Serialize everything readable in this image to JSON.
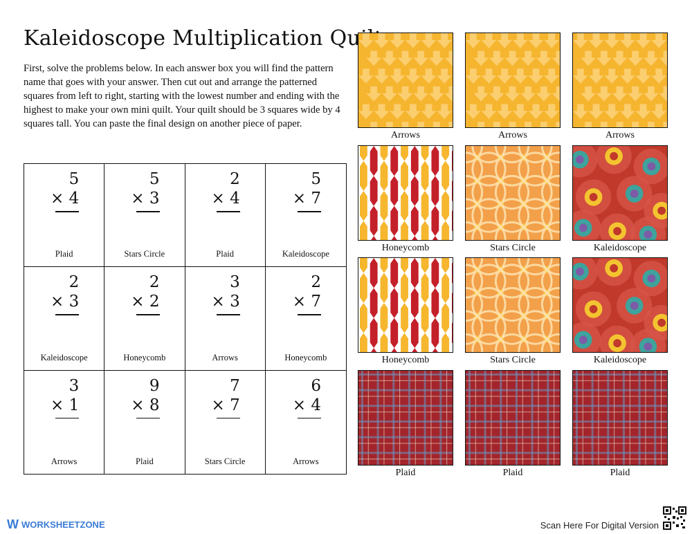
{
  "title": "Kaleidoscope Multiplication Quilt",
  "instructions": "First, solve the problems below. In each answer box you will find the pattern name that goes with your answer. Then cut out and arrange the patterned squares from left to right, starting with the lowest number and ending with the highest to make your own mini quilt. Your quilt should be 3 squares wide by 4 squares tall. You can paste the final design on another piece of  paper.",
  "problems": [
    {
      "top": "5",
      "bottom": "× 4",
      "label": "Plaid"
    },
    {
      "top": "5",
      "bottom": "× 3",
      "label": "Stars Circle"
    },
    {
      "top": "2",
      "bottom": "× 4",
      "label": "Plaid"
    },
    {
      "top": "5",
      "bottom": "× 7",
      "label": "Kaleidoscope"
    },
    {
      "top": "2",
      "bottom": "× 3",
      "label": "Kaleidoscope"
    },
    {
      "top": "2",
      "bottom": "× 2",
      "label": "Honeycomb"
    },
    {
      "top": "3",
      "bottom": "× 3",
      "label": "Arrows"
    },
    {
      "top": "2",
      "bottom": "× 7",
      "label": "Honeycomb"
    },
    {
      "top": "3",
      "bottom": "× 1",
      "label": "Arrows"
    },
    {
      "top": "9",
      "bottom": "× 8",
      "label": "Plaid"
    },
    {
      "top": "7",
      "bottom": "× 7",
      "label": "Stars Circle"
    },
    {
      "top": "6",
      "bottom": "× 4",
      "label": "Arrows"
    }
  ],
  "swatches": [
    {
      "label": "Arrows",
      "pattern": "arrows"
    },
    {
      "label": "Arrows",
      "pattern": "arrows"
    },
    {
      "label": "Arrows",
      "pattern": "arrows"
    },
    {
      "label": "Honeycomb",
      "pattern": "honeycomb"
    },
    {
      "label": "Stars Circle",
      "pattern": "stars-circle"
    },
    {
      "label": "Kaleidoscope",
      "pattern": "kaleidoscope"
    },
    {
      "label": "Honeycomb",
      "pattern": "honeycomb"
    },
    {
      "label": "Stars Circle",
      "pattern": "stars-circle"
    },
    {
      "label": "Kaleidoscope",
      "pattern": "kaleidoscope"
    },
    {
      "label": "Plaid",
      "pattern": "plaid"
    },
    {
      "label": "Plaid",
      "pattern": "plaid"
    },
    {
      "label": "Plaid",
      "pattern": "plaid"
    }
  ],
  "colors": {
    "arrows_bg": "#f6b52f",
    "arrows_fg": "#fbd27a",
    "honeycomb_red": "#c4202a",
    "honeycomb_yellow": "#f6b62e",
    "stars_bg": "#f3a04a",
    "plaid_red": "#a3252b",
    "kaleido_red": "#c0392b",
    "brand_blue": "#3a7bd5"
  },
  "footer": {
    "brand": "WORKSHEETZONE",
    "scan_text": "Scan Here For Digital Version"
  }
}
